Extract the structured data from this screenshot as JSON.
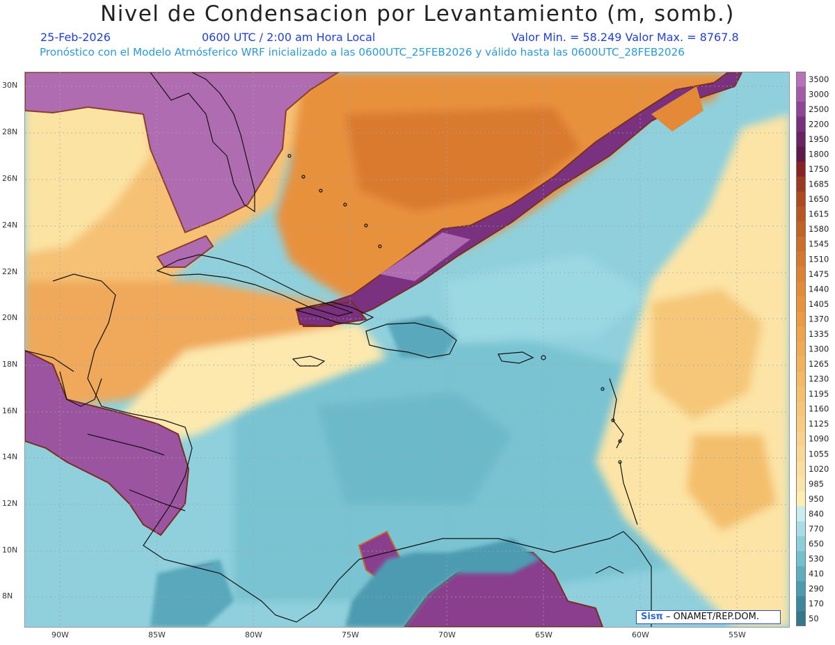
{
  "header": {
    "title": "Nivel de Condensacion por Levantamiento (m, somb.)",
    "date": "25-Feb-2026",
    "time": "0600 UTC / 2:00 am Hora Local",
    "min_max": "Valor Min. = 58.249  Valor Max. = 8767.8",
    "subtitle": "Pronóstico con el Modelo Atmósferico WRF inicializado a las 0600UTC_25FEB2026 y válido hasta las  0600UTC_28FEB2026"
  },
  "map": {
    "lat_labels": [
      "30N",
      "28N",
      "26N",
      "24N",
      "22N",
      "20N",
      "18N",
      "16N",
      "14N",
      "12N",
      "10N",
      "8N"
    ],
    "lon_labels": [
      "90W",
      "85W",
      "80W",
      "75W",
      "70W",
      "65W",
      "60W",
      "55W"
    ],
    "grid": "dotted"
  },
  "colorbar": {
    "levels": [
      {
        "label": "3500",
        "color": "#b772b9"
      },
      {
        "label": "3000",
        "color": "#a45ba8"
      },
      {
        "label": "2500",
        "color": "#8f4698"
      },
      {
        "label": "2200",
        "color": "#7a2f7f"
      },
      {
        "label": "1950",
        "color": "#6b2463"
      },
      {
        "label": "1800",
        "color": "#5e1a48"
      },
      {
        "label": "1750",
        "color": "#8a2424"
      },
      {
        "label": "1685",
        "color": "#9c3a1f"
      },
      {
        "label": "1650",
        "color": "#ad4a1f"
      },
      {
        "label": "1615",
        "color": "#b85722"
      },
      {
        "label": "1580",
        "color": "#c26326"
      },
      {
        "label": "1545",
        "color": "#cc6f2a"
      },
      {
        "label": "1510",
        "color": "#d6792e"
      },
      {
        "label": "1475",
        "color": "#de8233"
      },
      {
        "label": "1440",
        "color": "#e48b38"
      },
      {
        "label": "1405",
        "color": "#e9933c"
      },
      {
        "label": "1370",
        "color": "#ec9b43"
      },
      {
        "label": "1335",
        "color": "#efa34a"
      },
      {
        "label": "1300",
        "color": "#f1aa52"
      },
      {
        "label": "1265",
        "color": "#f3b15a"
      },
      {
        "label": "1230",
        "color": "#f5b863"
      },
      {
        "label": "1195",
        "color": "#f6bf6c"
      },
      {
        "label": "1160",
        "color": "#f7c576"
      },
      {
        "label": "1125",
        "color": "#f8cb80"
      },
      {
        "label": "1090",
        "color": "#f9d18a"
      },
      {
        "label": "1055",
        "color": "#fad794"
      },
      {
        "label": "1020",
        "color": "#fbdd9e"
      },
      {
        "label": "985",
        "color": "#fce4a8"
      },
      {
        "label": "950",
        "color": "#fdeeb2"
      },
      {
        "label": "840",
        "color": "#c8ecf0"
      },
      {
        "label": "770",
        "color": "#a6dde6"
      },
      {
        "label": "650",
        "color": "#8ccfdb"
      },
      {
        "label": "530",
        "color": "#73c0cf"
      },
      {
        "label": "410",
        "color": "#5daec0"
      },
      {
        "label": "290",
        "color": "#4c9bb0"
      },
      {
        "label": "170",
        "color": "#3e889f"
      },
      {
        "label": "50",
        "color": "#33768d"
      }
    ]
  },
  "credit": {
    "logo": "Sisπ",
    "text": "– ONAMET/REP.DOM."
  }
}
